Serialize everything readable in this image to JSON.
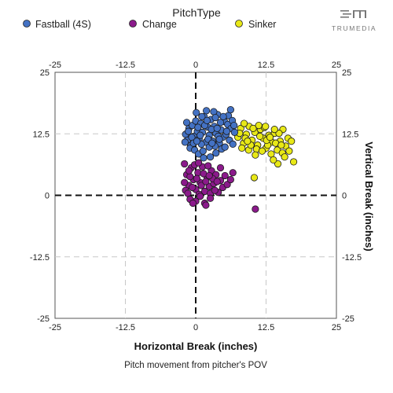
{
  "legend": {
    "title": "PitchType",
    "items": [
      {
        "label": "Fastball (4S)",
        "color": "#4472C4"
      },
      {
        "label": "Change",
        "color": "#8B1A8B"
      },
      {
        "label": "Sinker",
        "color": "#E8E817"
      }
    ]
  },
  "brand": {
    "name": "TRUMEDIA",
    "icon": "trumedia-logo-icon"
  },
  "chart_data": {
    "type": "scatter",
    "xlabel": "Horizontal Break (inches)",
    "ylabel": "Vertical Break (inches)",
    "subtitle": "Pitch movement from pitcher's POV",
    "xlim": [
      -25,
      25
    ],
    "ylim": [
      -25,
      25
    ],
    "ticks": [
      -25,
      -12.5,
      0,
      12.5,
      25
    ],
    "tick_labels": [
      "-25",
      "-12.5",
      "0",
      "12.5",
      "25"
    ],
    "grid": true,
    "zero_lines": true,
    "legend_position": "top",
    "series": [
      {
        "name": "Fastball (4S)",
        "color": "#4472C4",
        "points": [
          [
            -1.8,
            12.4
          ],
          [
            -1.5,
            11.2
          ],
          [
            -1.2,
            13.6
          ],
          [
            -0.9,
            10.1
          ],
          [
            -0.6,
            14.2
          ],
          [
            -0.3,
            12.0
          ],
          [
            0.0,
            15.1
          ],
          [
            0.3,
            13.0
          ],
          [
            0.6,
            11.5
          ],
          [
            0.9,
            14.6
          ],
          [
            1.2,
            12.8
          ],
          [
            1.5,
            16.0
          ],
          [
            1.8,
            10.8
          ],
          [
            2.1,
            13.9
          ],
          [
            2.4,
            12.2
          ],
          [
            2.7,
            15.4
          ],
          [
            3.0,
            11.0
          ],
          [
            3.3,
            14.0
          ],
          [
            3.6,
            12.6
          ],
          [
            3.9,
            16.4
          ],
          [
            4.2,
            10.6
          ],
          [
            4.5,
            13.3
          ],
          [
            4.8,
            11.8
          ],
          [
            5.1,
            15.0
          ],
          [
            5.4,
            12.4
          ],
          [
            5.7,
            14.4
          ],
          [
            6.0,
            11.2
          ],
          [
            6.3,
            13.6
          ],
          [
            6.6,
            10.4
          ],
          [
            6.9,
            12.8
          ],
          [
            -1.0,
            9.6
          ],
          [
            -0.2,
            9.2
          ],
          [
            0.5,
            8.4
          ],
          [
            1.4,
            7.6
          ],
          [
            2.6,
            7.8
          ],
          [
            3.6,
            8.6
          ],
          [
            4.6,
            9.4
          ],
          [
            -1.6,
            14.8
          ],
          [
            0.1,
            16.8
          ],
          [
            1.9,
            17.2
          ],
          [
            3.2,
            17.0
          ],
          [
            5.8,
            16.2
          ],
          [
            6.2,
            17.4
          ],
          [
            -0.7,
            11.8
          ],
          [
            1.0,
            10.4
          ],
          [
            2.2,
            11.4
          ],
          [
            3.4,
            10.0
          ],
          [
            4.4,
            14.8
          ],
          [
            5.2,
            9.8
          ],
          [
            0.4,
            13.8
          ],
          [
            1.6,
            14.2
          ],
          [
            2.8,
            13.4
          ],
          [
            4.0,
            12.0
          ],
          [
            -1.3,
            13.0
          ],
          [
            0.8,
            12.2
          ],
          [
            2.0,
            15.2
          ],
          [
            3.8,
            13.6
          ],
          [
            4.9,
            16.0
          ],
          [
            6.5,
            15.2
          ],
          [
            -0.4,
            10.6
          ],
          [
            1.3,
            9.0
          ],
          [
            2.4,
            9.8
          ],
          [
            3.5,
            15.8
          ],
          [
            5.5,
            13.0
          ],
          [
            0.2,
            11.0
          ],
          [
            1.1,
            16.0
          ],
          [
            2.9,
            10.6
          ],
          [
            4.2,
            11.4
          ],
          [
            -1.9,
            10.8
          ],
          [
            6.8,
            14.2
          ]
        ]
      },
      {
        "name": "Change",
        "color": "#8B1A8B",
        "points": [
          [
            -2.0,
            6.4
          ],
          [
            -1.6,
            4.2
          ],
          [
            -1.2,
            2.0
          ],
          [
            -0.8,
            5.6
          ],
          [
            -0.4,
            3.2
          ],
          [
            0.0,
            1.2
          ],
          [
            0.4,
            4.6
          ],
          [
            0.8,
            2.6
          ],
          [
            1.2,
            5.8
          ],
          [
            1.6,
            0.8
          ],
          [
            2.0,
            3.8
          ],
          [
            2.4,
            1.8
          ],
          [
            2.8,
            5.0
          ],
          [
            3.2,
            2.4
          ],
          [
            3.6,
            4.2
          ],
          [
            4.0,
            0.6
          ],
          [
            4.4,
            3.0
          ],
          [
            4.8,
            1.6
          ],
          [
            5.2,
            4.0
          ],
          [
            5.6,
            2.2
          ],
          [
            -1.8,
            1.0
          ],
          [
            -1.4,
            0.4
          ],
          [
            -1.0,
            3.8
          ],
          [
            -0.6,
            1.6
          ],
          [
            -0.2,
            6.2
          ],
          [
            0.2,
            3.4
          ],
          [
            0.6,
            0.2
          ],
          [
            1.0,
            2.0
          ],
          [
            1.4,
            4.4
          ],
          [
            1.8,
            2.8
          ],
          [
            2.2,
            6.0
          ],
          [
            2.6,
            0.4
          ],
          [
            3.0,
            3.4
          ],
          [
            3.4,
            1.0
          ],
          [
            3.8,
            2.8
          ],
          [
            0.0,
            -1.2
          ],
          [
            1.6,
            -1.6
          ],
          [
            2.6,
            -0.6
          ],
          [
            -1.0,
            -0.8
          ],
          [
            0.8,
            -0.2
          ],
          [
            -2.0,
            2.6
          ],
          [
            6.2,
            3.2
          ],
          [
            6.6,
            4.6
          ],
          [
            4.4,
            5.6
          ],
          [
            -0.5,
            -1.6
          ],
          [
            1.8,
            -2.0
          ],
          [
            10.6,
            -2.8
          ],
          [
            0.5,
            6.6
          ],
          [
            -1.2,
            5.0
          ],
          [
            2.4,
            4.0
          ]
        ]
      },
      {
        "name": "Sinker",
        "color": "#E8E817",
        "points": [
          [
            7.5,
            11.8
          ],
          [
            8.0,
            13.6
          ],
          [
            8.5,
            10.6
          ],
          [
            9.0,
            12.4
          ],
          [
            9.5,
            14.0
          ],
          [
            10.0,
            11.2
          ],
          [
            10.5,
            12.8
          ],
          [
            11.0,
            10.2
          ],
          [
            11.5,
            13.4
          ],
          [
            12.0,
            11.6
          ],
          [
            12.5,
            9.6
          ],
          [
            13.0,
            12.2
          ],
          [
            13.5,
            10.8
          ],
          [
            14.0,
            12.6
          ],
          [
            14.5,
            9.2
          ],
          [
            15.0,
            11.0
          ],
          [
            15.5,
            13.4
          ],
          [
            16.0,
            10.0
          ],
          [
            8.2,
            9.6
          ],
          [
            8.8,
            11.6
          ],
          [
            9.4,
            9.2
          ],
          [
            10.2,
            13.6
          ],
          [
            10.8,
            9.4
          ],
          [
            11.4,
            12.0
          ],
          [
            12.2,
            13.8
          ],
          [
            12.8,
            10.2
          ],
          [
            13.4,
            8.4
          ],
          [
            14.2,
            10.6
          ],
          [
            14.8,
            12.6
          ],
          [
            15.4,
            8.6
          ],
          [
            16.4,
            11.6
          ],
          [
            17.0,
            11.0
          ],
          [
            17.4,
            6.8
          ],
          [
            15.8,
            7.8
          ],
          [
            14.6,
            6.4
          ],
          [
            13.8,
            7.2
          ],
          [
            12.6,
            11.2
          ],
          [
            11.8,
            9.0
          ],
          [
            9.8,
            10.2
          ],
          [
            7.8,
            12.6
          ],
          [
            10.4,
            3.6
          ],
          [
            8.6,
            14.6
          ],
          [
            12.4,
            14.0
          ],
          [
            16.6,
            9.0
          ],
          [
            13.2,
            11.8
          ],
          [
            9.2,
            11.0
          ],
          [
            11.2,
            14.2
          ],
          [
            15.2,
            10.2
          ],
          [
            10.6,
            8.2
          ],
          [
            14.0,
            13.4
          ]
        ]
      }
    ]
  }
}
